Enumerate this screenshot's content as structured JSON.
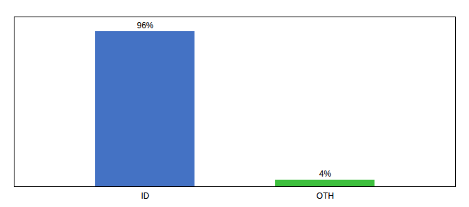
{
  "chart_data": {
    "type": "bar",
    "categories": [
      "ID",
      "OTH"
    ],
    "values": [
      96,
      4
    ],
    "value_labels": [
      "96%",
      "4%"
    ],
    "colors": [
      "#4472c4",
      "#3dbf3d"
    ],
    "ylim": [
      0,
      105
    ],
    "yticks": [],
    "tick_labels": "x",
    "data_labels": true
  }
}
